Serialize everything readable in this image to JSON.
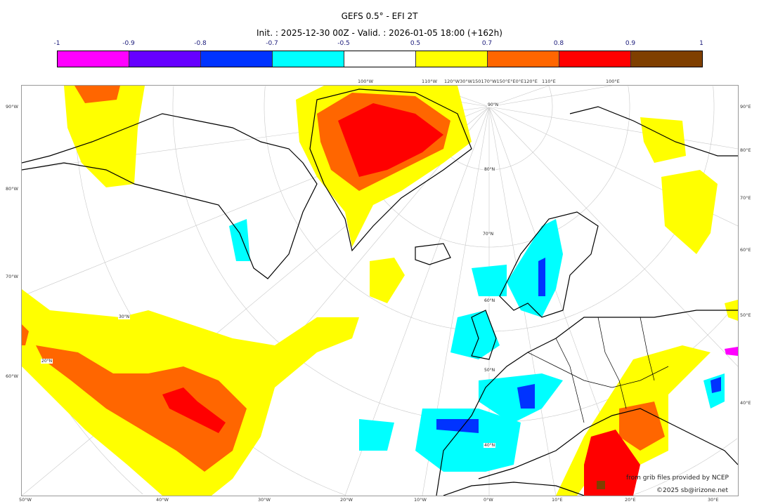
{
  "title": "GEFS 0.5° - EFI 2T",
  "subtitle": "Init. : 2025-12-30 00Z - Valid. : 2026-01-05 18:00 (+162h)",
  "colorbar": {
    "ticks": [
      "-1",
      "-0.9",
      "-0.8",
      "-0.7",
      "-0.5",
      "0.5",
      "0.7",
      "0.8",
      "0.9",
      "1"
    ],
    "colors": [
      "#ff00ff",
      "#6600ff",
      "#0033ff",
      "#00ffff",
      "#ffffff",
      "#ffff00",
      "#ff6600",
      "#ff0000",
      "#7f3f00"
    ]
  },
  "axes": {
    "left": [
      "90°W",
      "80°W",
      "70°W",
      "60°W"
    ],
    "bottom": [
      "50°W",
      "40°W",
      "30°W",
      "20°W",
      "10°W",
      "0°W",
      "10°E",
      "20°E",
      "30°E"
    ],
    "right": [
      "90°E",
      "80°E",
      "70°E",
      "60°E",
      "50°E",
      "40°E"
    ],
    "top": [
      "100°W",
      "110°W",
      "120°W30°W150170°W150°E°E0°E120°E",
      "110°E",
      "100°E"
    ],
    "lat": [
      "90°N",
      "80°N",
      "70°N",
      "60°N",
      "50°N",
      "40°N",
      "30°N",
      "20°N"
    ]
  },
  "credits": {
    "source": "from grib files provided by NCEP",
    "copyright": "©2025 sb@irizone.net"
  }
}
